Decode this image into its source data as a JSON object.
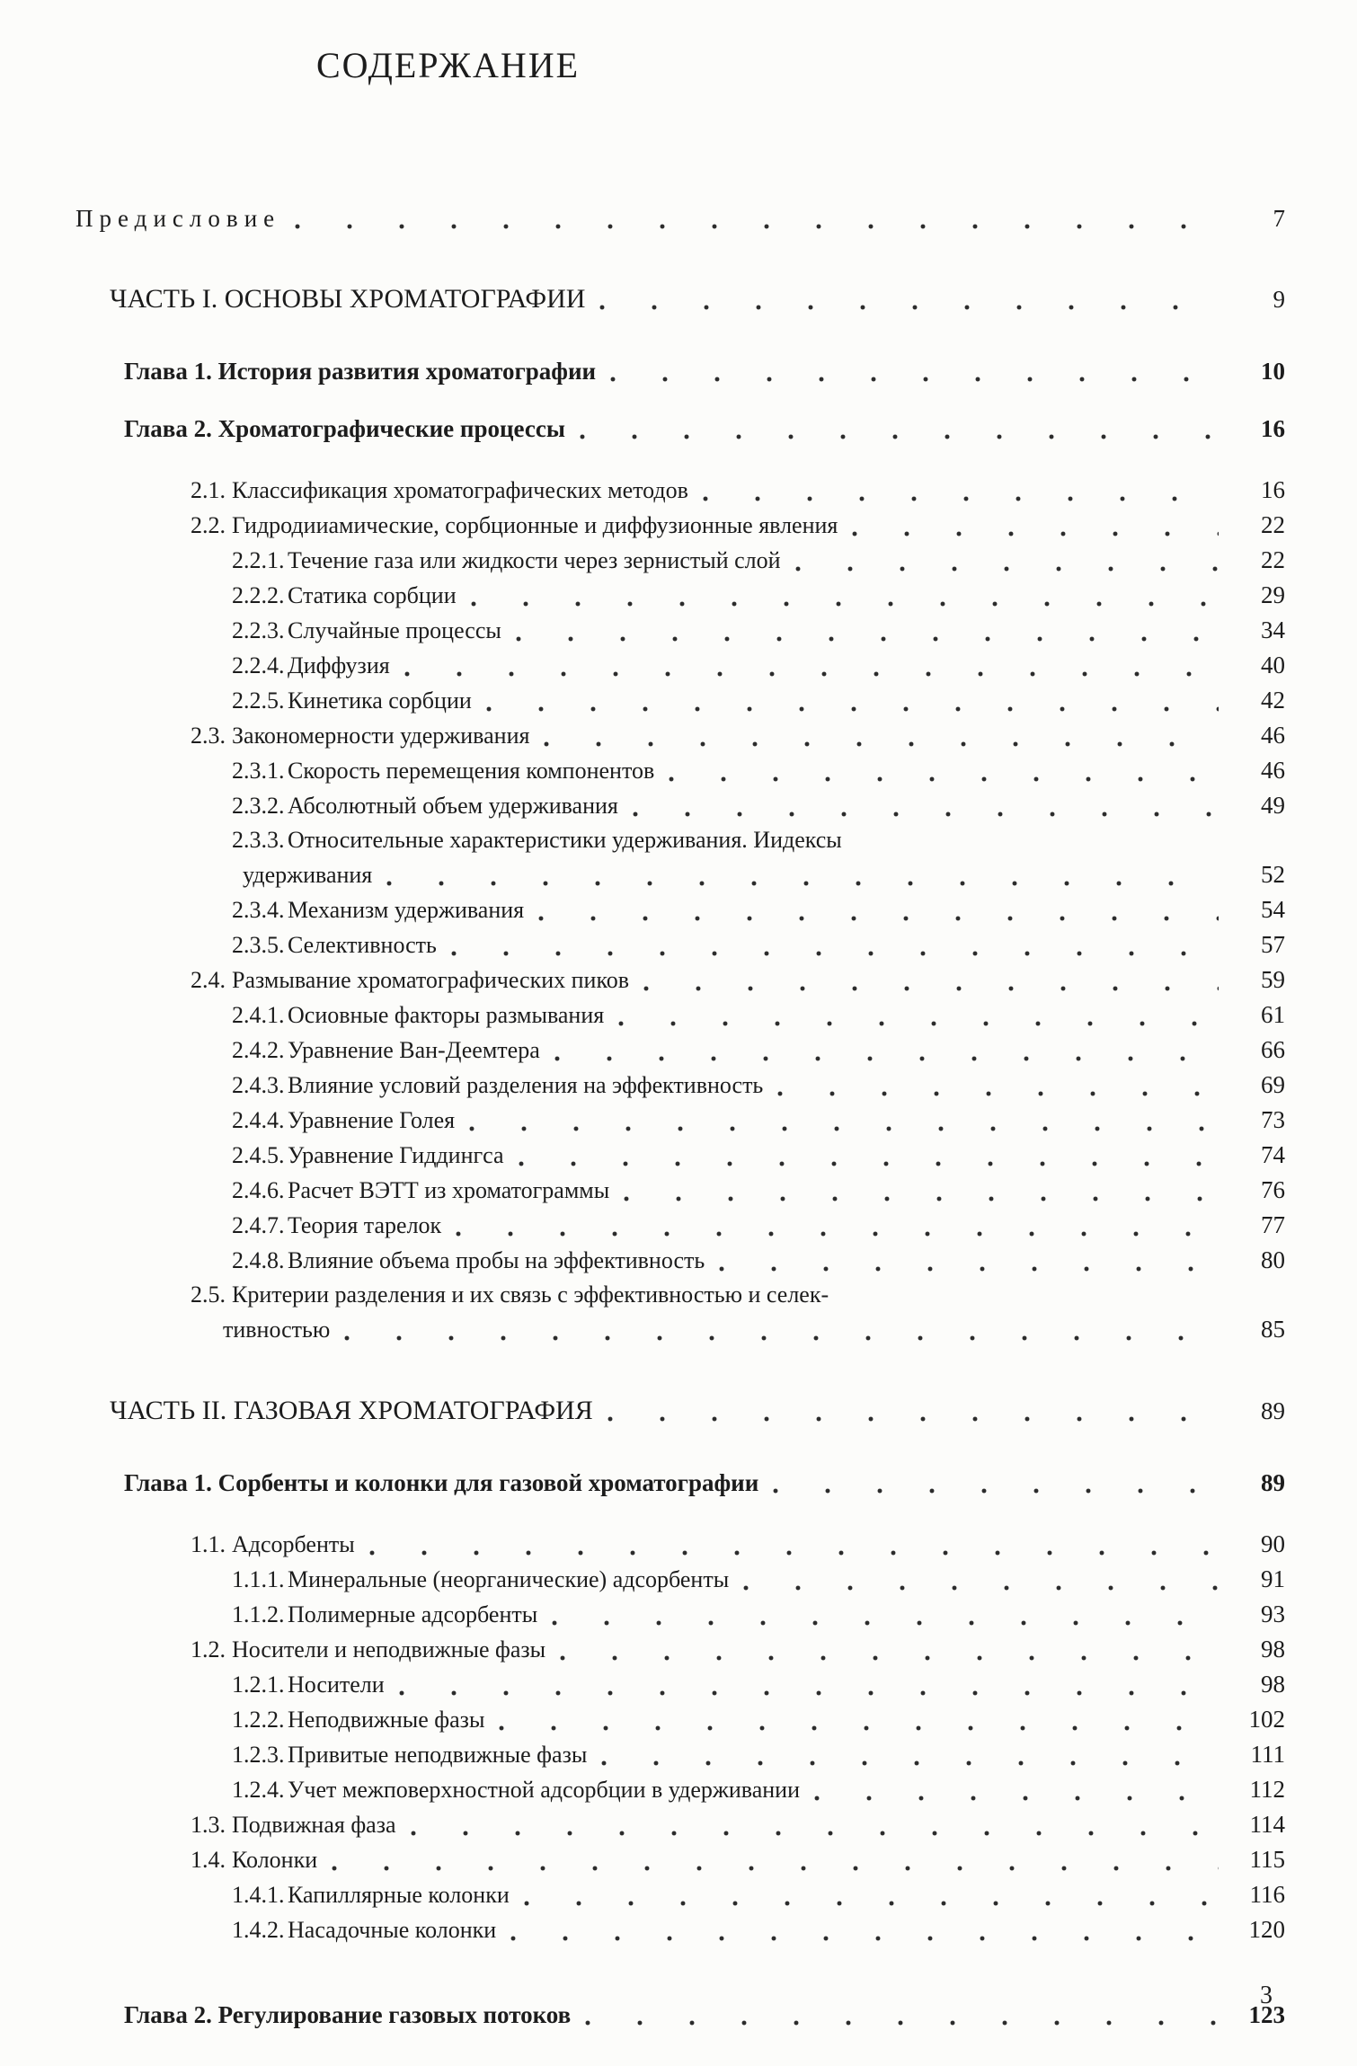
{
  "page": {
    "title": "СОДЕРЖАНИЕ",
    "footer_page_number": "3"
  },
  "toc": {
    "entries": [
      {
        "type": "preface",
        "text": "Предисловие",
        "page": "7"
      },
      {
        "type": "part",
        "text": "ЧАСТЬ I. ОСНОВЫ ХРОМАТОГРАФИИ",
        "page": "9"
      },
      {
        "type": "chapter",
        "text": "Глава 1. История развития хроматографии",
        "page": "10"
      },
      {
        "type": "chapter",
        "text": "Глава 2. Хроматографические процессы",
        "page": "16"
      },
      {
        "type": "s1",
        "num": "2.1.",
        "text": "Классификация хроматографических методов",
        "page": "16"
      },
      {
        "type": "s1",
        "num": "2.2.",
        "text": "Гидродииамические, сорбционные и диффузионные явления",
        "page": "22"
      },
      {
        "type": "s2",
        "num": "2.2.1.",
        "text": "Течение газа или жидкости через зернистый слой",
        "page": "22"
      },
      {
        "type": "s2",
        "num": "2.2.2.",
        "text": "Статика сорбции",
        "page": "29"
      },
      {
        "type": "s2",
        "num": "2.2.3.",
        "text": "Случайные процессы",
        "page": "34"
      },
      {
        "type": "s2",
        "num": "2.2.4.",
        "text": "Диффузия",
        "page": "40"
      },
      {
        "type": "s2",
        "num": "2.2.5.",
        "text": "Кинетика сорбции",
        "page": "42"
      },
      {
        "type": "s1",
        "num": "2.3.",
        "text": "Закономерности удерживания",
        "page": "46"
      },
      {
        "type": "s2",
        "num": "2.3.1.",
        "text": "Скорость перемещения компонентов",
        "page": "46"
      },
      {
        "type": "s2",
        "num": "2.3.2.",
        "text": "Абсолютный объем удерживания",
        "page": "49"
      },
      {
        "type": "s2",
        "num": "2.3.3.",
        "text": "Относительные характеристики удерживания. Иидексы",
        "text2": "удерживания",
        "page": "52"
      },
      {
        "type": "s2",
        "num": "2.3.4.",
        "text": "Механизм удерживания",
        "page": "54"
      },
      {
        "type": "s2",
        "num": "2.3.5.",
        "text": "Селективность",
        "page": "57"
      },
      {
        "type": "s1",
        "num": "2.4.",
        "text": "Размывание хроматографических пиков",
        "page": "59"
      },
      {
        "type": "s2",
        "num": "2.4.1.",
        "text": "Осиовные факторы размывания",
        "page": "61"
      },
      {
        "type": "s2",
        "num": "2.4.2.",
        "text": "Уравнение Ван-Деемтера",
        "page": "66"
      },
      {
        "type": "s2",
        "num": "2.4.3.",
        "text": "Влияние условий разделения на эффективность",
        "page": "69"
      },
      {
        "type": "s2",
        "num": "2.4.4.",
        "text": "Уравнение Голея",
        "page": "73"
      },
      {
        "type": "s2",
        "num": "2.4.5.",
        "text": "Уравнение Гиддингса",
        "page": "74"
      },
      {
        "type": "s2",
        "num": "2.4.6.",
        "text": "Расчет ВЭТТ из хроматограммы",
        "page": "76"
      },
      {
        "type": "s2",
        "num": "2.4.7.",
        "text": "Теория тарелок",
        "page": "77"
      },
      {
        "type": "s2",
        "num": "2.4.8.",
        "text": "Влияние объема пробы на эффективность",
        "page": "80"
      },
      {
        "type": "s1",
        "num": "2.5.",
        "text": "Критерии разделения и их связь с эффективностью и селек-",
        "text2": "тивностью",
        "page": "85"
      },
      {
        "type": "part",
        "text": "ЧАСТЬ II. ГАЗОВАЯ ХРОМАТОГРАФИЯ",
        "page": "89"
      },
      {
        "type": "chapter",
        "text": "Глава 1. Сорбенты и колонки для газовой хроматографии",
        "page": "89"
      },
      {
        "type": "s1",
        "num": "1.1.",
        "text": "Адсорбенты",
        "page": "90"
      },
      {
        "type": "s2",
        "num": "1.1.1.",
        "text": "Минеральные (неорганические) адсорбенты",
        "page": "91"
      },
      {
        "type": "s2",
        "num": "1.1.2.",
        "text": "Полимерные адсорбенты",
        "page": "93"
      },
      {
        "type": "s1",
        "num": "1.2.",
        "text": "Носители и неподвижные фазы",
        "page": "98"
      },
      {
        "type": "s2",
        "num": "1.2.1.",
        "text": "Носители",
        "page": "98"
      },
      {
        "type": "s2",
        "num": "1.2.2.",
        "text": "Неподвижные фазы",
        "page": "102"
      },
      {
        "type": "s2",
        "num": "1.2.3.",
        "text": "Привитые неподвижные фазы",
        "page": "111"
      },
      {
        "type": "s2",
        "num": "1.2.4.",
        "text": "Учет межповерхностной адсорбции в удерживании",
        "page": "112"
      },
      {
        "type": "s1",
        "num": "1.3.",
        "text": "Подвижная фаза",
        "page": "114"
      },
      {
        "type": "s1",
        "num": "1.4.",
        "text": "Колонки",
        "page": "115"
      },
      {
        "type": "s2",
        "num": "1.4.1.",
        "text": "Капиллярные колонки",
        "page": "116"
      },
      {
        "type": "s2",
        "num": "1.4.2.",
        "text": "Насадочные колонки",
        "page": "120"
      },
      {
        "type": "chapter",
        "text": "Глава 2. Регулирование газовых потоков",
        "page": "123"
      }
    ]
  }
}
